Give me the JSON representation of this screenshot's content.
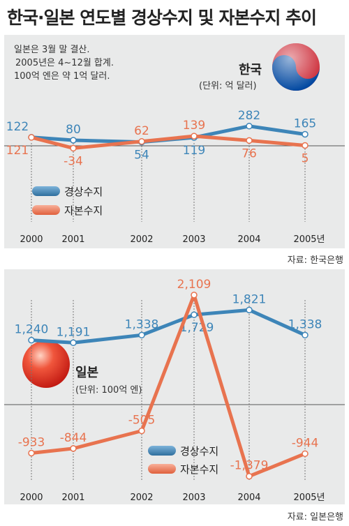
{
  "title": "한국·일본 연도별 경상수지 및 자본수지 추이",
  "korea": {
    "notes": [
      "일본은 3월 말 결산.",
      "2005년은 4~12월 합계.",
      "100억 엔은 약 1억 달러."
    ],
    "country_label": "한국",
    "unit_label": "(단위: 억 달러)",
    "source": "자료: 한국은행"
  },
  "japan": {
    "country_label": "일본",
    "unit_label": "(단위: 100억 엔)",
    "source": "자료: 일본은행"
  },
  "colors": {
    "current": "#3d85b8",
    "capital": "#e8734f",
    "panel": "#e9eaea"
  },
  "chart_data": [
    {
      "type": "line",
      "name": "한국",
      "categories": [
        "2000",
        "2001",
        "2002",
        "2003",
        "2004",
        "2005년"
      ],
      "series": [
        {
          "name": "경상수지",
          "values": [
            122,
            80,
            54,
            119,
            282,
            165
          ],
          "labels": [
            "122",
            "80",
            "54",
            "119",
            "282",
            "165"
          ]
        },
        {
          "name": "자본수지",
          "values": [
            121,
            -34,
            62,
            139,
            76,
            5
          ],
          "labels": [
            "121",
            "-34",
            "62",
            "139",
            "76",
            "5"
          ]
        }
      ]
    },
    {
      "type": "line",
      "name": "일본",
      "categories": [
        "2000",
        "2001",
        "2002",
        "2003",
        "2004",
        "2005년"
      ],
      "series": [
        {
          "name": "경상수지",
          "values": [
            1240,
            1191,
            1338,
            1729,
            1821,
            1338
          ],
          "labels": [
            "1,240",
            "1,191",
            "1,338",
            "1,729",
            "1,821",
            "1,338"
          ]
        },
        {
          "name": "자본수지",
          "values": [
            -933,
            -844,
            -505,
            2109,
            -1379,
            -944
          ],
          "labels": [
            "-933",
            "-844",
            "-505",
            "2,109",
            "-1,379",
            "-944"
          ]
        }
      ]
    }
  ]
}
